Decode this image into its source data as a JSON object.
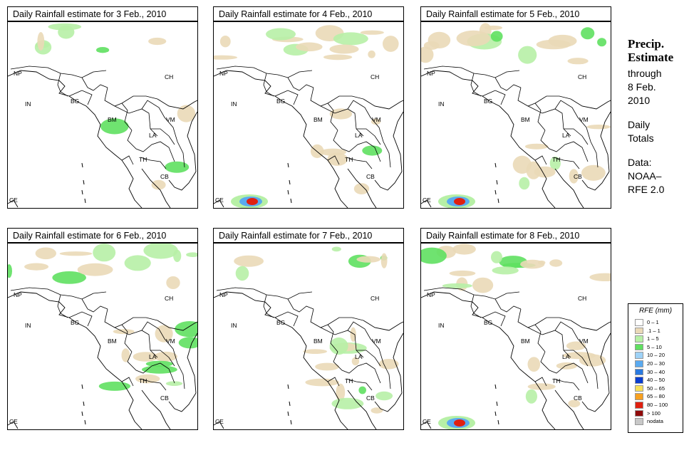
{
  "panels": [
    {
      "title": "Daily Rainfall estimate for  3 Feb., 2010",
      "rain_level": 0.15,
      "heavy_cell": false
    },
    {
      "title": "Daily Rainfall estimate for  4 Feb., 2010",
      "rain_level": 0.45,
      "heavy_cell": true
    },
    {
      "title": "Daily Rainfall estimate for  5 Feb., 2010",
      "rain_level": 0.55,
      "heavy_cell": true
    },
    {
      "title": "Daily Rainfall estimate for  6 Feb., 2010",
      "rain_level": 0.6,
      "heavy_cell": false
    },
    {
      "title": "Daily Rainfall estimate for  7 Feb., 2010",
      "rain_level": 0.5,
      "heavy_cell": false
    },
    {
      "title": "Daily Rainfall estimate for  8 Feb., 2010",
      "rain_level": 0.55,
      "heavy_cell": true
    }
  ],
  "country_labels": [
    "NP",
    "CH",
    "IN",
    "BG",
    "BM",
    "VM",
    "LA",
    "TH",
    "CB",
    "CE"
  ],
  "side_text": {
    "title_line1": "Precip.",
    "title_line2": "Estimate",
    "through": "through",
    "date_line1": "8 Feb.",
    "date_line2": "2010",
    "daily": "Daily",
    "totals": "Totals",
    "data": "Data:",
    "source1": "NOAA–",
    "source2": "RFE 2.0"
  },
  "legend": {
    "title": "RFE (mm)",
    "items": [
      {
        "label": "0 – 1",
        "color": "#ffffff"
      },
      {
        "label": ".1 – 1",
        "color": "#ead9b7"
      },
      {
        "label": "1 – 5",
        "color": "#b7f0a6"
      },
      {
        "label": "5 – 10",
        "color": "#5fe060"
      },
      {
        "label": "10 – 20",
        "color": "#9ed2f7"
      },
      {
        "label": "20 – 30",
        "color": "#5aaaf0"
      },
      {
        "label": "30 – 40",
        "color": "#2a7ae0"
      },
      {
        "label": "40 – 50",
        "color": "#0a3ed0"
      },
      {
        "label": "50 – 65",
        "color": "#f7e05a"
      },
      {
        "label": "65 – 80",
        "color": "#f7a020"
      },
      {
        "label": "80 – 100",
        "color": "#e02010"
      },
      {
        "label": "> 100",
        "color": "#900a0a"
      },
      {
        "label": "nodata",
        "color": "#c8c8c8"
      }
    ]
  },
  "colors": {
    "tan": "#ead9b7",
    "light_green": "#b7f0a6",
    "green": "#5fe060",
    "blue": "#5aaaf0",
    "red": "#e02010"
  }
}
